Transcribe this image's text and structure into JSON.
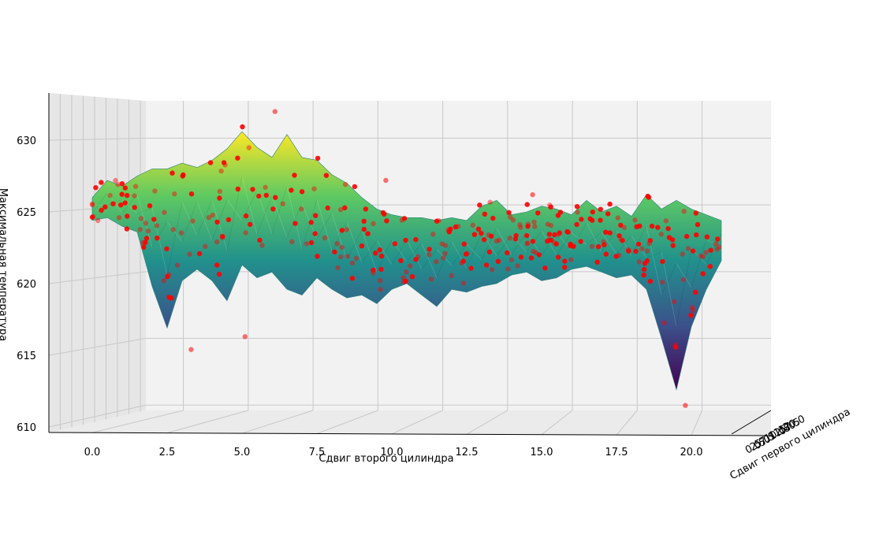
{
  "chart_data": {
    "type": "surface3d+scatter",
    "xlabel": "Сдвиг второго цилиндра",
    "ylabel": "Сдвиг первого цилиндра",
    "zlabel": "Максимальная температура",
    "x_ticks": [
      "0.0",
      "2.5",
      "5.0",
      "7.5",
      "10.0",
      "12.5",
      "15.0",
      "17.5",
      "20.0"
    ],
    "x_tick_values": [
      0,
      2.5,
      5,
      7.5,
      10,
      12.5,
      15,
      17.5,
      20
    ],
    "y_ticks": [
      "0.0",
      "2.5",
      "5.0",
      "7.5",
      "10.0",
      "12.5",
      "15.0",
      "17.5",
      "20.0"
    ],
    "z_ticks": [
      "610",
      "615",
      "620",
      "625",
      "630"
    ],
    "z_tick_values": [
      610,
      615,
      620,
      625,
      630
    ],
    "xlim": [
      -1,
      21
    ],
    "ylim": [
      0,
      20
    ],
    "zlim": [
      609.6,
      632.8
    ],
    "grid": true,
    "colormap": "viridis",
    "scatter_color": "#ff0000",
    "surface_profile": {
      "x": [
        0,
        0.5,
        1,
        1.5,
        2,
        2.5,
        3,
        3.5,
        4,
        4.5,
        5,
        5.5,
        6,
        6.5,
        7,
        7.5,
        8,
        8.5,
        9,
        9.5,
        10,
        10.5,
        11,
        11.5,
        12,
        12.5,
        13,
        13.5,
        14,
        14.5,
        15,
        15.5,
        16,
        16.5,
        17,
        17.5,
        18,
        18.5,
        19,
        19.5,
        20,
        20.5,
        21
      ],
      "z_top": [
        626,
        627.2,
        626.8,
        627.5,
        628,
        628,
        628.4,
        628.1,
        628.6,
        629.4,
        630.6,
        629.5,
        628.8,
        630.4,
        628.8,
        628.6,
        627.6,
        627,
        626,
        625.2,
        624.8,
        624.6,
        624.6,
        624.4,
        624.6,
        624.4,
        625.4,
        625.8,
        624.8,
        625,
        625.4,
        625.2,
        624.8,
        625.8,
        625,
        625.4,
        624.7,
        626.2,
        625.2,
        625.8,
        625.2,
        624.8,
        624.4
      ],
      "z_bottom": [
        624.4,
        624.6,
        624,
        623.6,
        619.8,
        616.9,
        620.2,
        621,
        620.2,
        618.8,
        621.3,
        620.4,
        620.8,
        619.6,
        619.2,
        620.4,
        619.6,
        619,
        619.2,
        618.6,
        619.6,
        620,
        619.2,
        618.4,
        619.6,
        619.4,
        619.8,
        620,
        620.6,
        620.8,
        620.2,
        620.4,
        621,
        621.2,
        620.8,
        620.4,
        620.6,
        619.6,
        616.2,
        612.6,
        617,
        619.6,
        621.6
      ]
    }
  }
}
